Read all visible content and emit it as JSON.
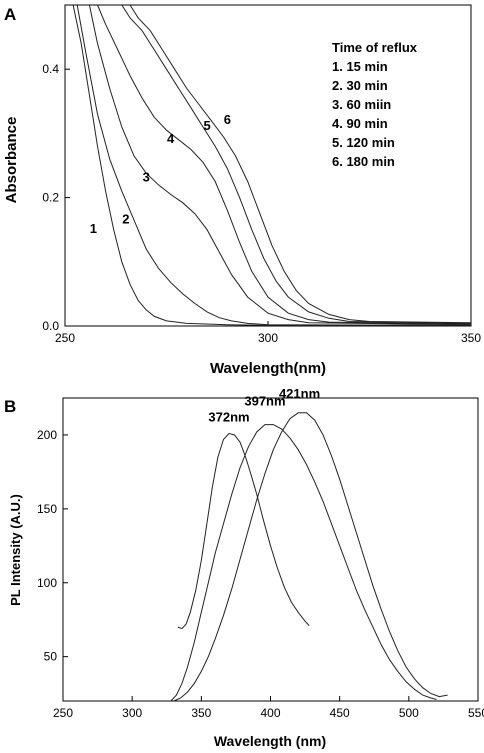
{
  "chart_data": [
    {
      "panel": "A",
      "type": "line",
      "xlabel": "Wavelength(nm)",
      "ylabel": "Absorbance",
      "xlim": [
        250,
        350
      ],
      "ylim": [
        0.0,
        0.5
      ],
      "xticks": [
        "250",
        "300",
        "350"
      ],
      "yticks": [
        "0.0",
        "0.2",
        "0.4"
      ],
      "grid": false,
      "legend": {
        "title": "Time of reflux",
        "placement": "top-right",
        "entries": [
          "1.  15 min",
          "2.  30 min",
          "3.  60 miin",
          "4.  90 min",
          "5.  120 min",
          "6.  180 min"
        ]
      },
      "series": [
        {
          "name": "1",
          "label": "1",
          "label_at": [
            257,
            0.145
          ],
          "x": [
            252,
            254,
            256,
            258,
            260,
            262,
            264,
            266,
            268,
            270,
            272,
            275,
            280,
            290,
            300,
            350
          ],
          "y": [
            0.5,
            0.44,
            0.36,
            0.28,
            0.21,
            0.15,
            0.1,
            0.065,
            0.04,
            0.025,
            0.015,
            0.008,
            0.004,
            0.002,
            0.001,
            0.001
          ]
        },
        {
          "name": "2",
          "label": "2",
          "label_at": [
            265,
            0.16
          ],
          "x": [
            253,
            255,
            258,
            261,
            264,
            267,
            270,
            273,
            276,
            279,
            282,
            285,
            288,
            291,
            295,
            300,
            350
          ],
          "y": [
            0.5,
            0.43,
            0.33,
            0.26,
            0.21,
            0.165,
            0.12,
            0.09,
            0.068,
            0.05,
            0.035,
            0.022,
            0.013,
            0.008,
            0.004,
            0.002,
            0.001
          ]
        },
        {
          "name": "3",
          "label": "3",
          "label_at": [
            270,
            0.225
          ],
          "x": [
            256,
            258,
            261,
            264,
            267,
            270,
            273,
            276,
            279,
            282,
            285,
            288,
            291,
            295,
            300,
            305,
            310,
            350
          ],
          "y": [
            0.5,
            0.44,
            0.37,
            0.31,
            0.265,
            0.238,
            0.22,
            0.205,
            0.192,
            0.175,
            0.15,
            0.115,
            0.08,
            0.045,
            0.02,
            0.01,
            0.005,
            0.002
          ]
        },
        {
          "name": "4",
          "label": "4",
          "label_at": [
            276,
            0.285
          ],
          "x": [
            258,
            260,
            263,
            266,
            269,
            272,
            275,
            278,
            281,
            284,
            287,
            290,
            293,
            296,
            300,
            305,
            310,
            315,
            350
          ],
          "y": [
            0.5,
            0.47,
            0.43,
            0.39,
            0.355,
            0.325,
            0.305,
            0.29,
            0.275,
            0.255,
            0.225,
            0.18,
            0.13,
            0.085,
            0.045,
            0.02,
            0.01,
            0.006,
            0.003
          ]
        },
        {
          "name": "5",
          "label": "5",
          "label_at": [
            285,
            0.305
          ],
          "x": [
            264,
            266,
            269,
            272,
            275,
            278,
            281,
            284,
            287,
            290,
            293,
            296,
            299,
            302,
            305,
            310,
            315,
            320,
            350
          ],
          "y": [
            0.5,
            0.48,
            0.46,
            0.43,
            0.4,
            0.37,
            0.34,
            0.31,
            0.28,
            0.245,
            0.2,
            0.15,
            0.105,
            0.07,
            0.045,
            0.022,
            0.012,
            0.007,
            0.004
          ]
        },
        {
          "name": "6",
          "label": "6",
          "label_at": [
            290,
            0.315
          ],
          "x": [
            266,
            268,
            271,
            274,
            277,
            280,
            283,
            286,
            289,
            292,
            295,
            298,
            301,
            304,
            307,
            310,
            315,
            320,
            325,
            350
          ],
          "y": [
            0.5,
            0.48,
            0.46,
            0.43,
            0.4,
            0.37,
            0.345,
            0.32,
            0.295,
            0.265,
            0.225,
            0.175,
            0.125,
            0.085,
            0.055,
            0.035,
            0.018,
            0.01,
            0.007,
            0.005
          ]
        }
      ]
    },
    {
      "panel": "B",
      "type": "line",
      "xlabel": "Wavelength (nm)",
      "ylabel": "PL Intensity (A.U.)",
      "xlim": [
        250,
        550
      ],
      "ylim": [
        20,
        225
      ],
      "xticks": [
        "250",
        "300",
        "350",
        "400",
        "450",
        "500",
        "550"
      ],
      "yticks": [
        "50",
        "100",
        "150",
        "200"
      ],
      "grid": false,
      "annotations": [
        {
          "text": "372nm",
          "x": 370,
          "y": 209
        },
        {
          "text": "397nm",
          "x": 396,
          "y": 220
        },
        {
          "text": "421nm",
          "x": 421,
          "y": 225
        }
      ],
      "series": [
        {
          "name": "372nm",
          "x": [
            333,
            336,
            339,
            342,
            346,
            350,
            354,
            358,
            362,
            366,
            370,
            374,
            378,
            382,
            386,
            390,
            395,
            400,
            405,
            410,
            415,
            420,
            425,
            428
          ],
          "y": [
            70,
            69,
            72,
            80,
            95,
            115,
            140,
            165,
            185,
            197,
            201,
            200,
            195,
            185,
            173,
            160,
            142,
            125,
            110,
            97,
            87,
            80,
            74,
            71
          ]
        },
        {
          "name": "397nm",
          "x": [
            328,
            332,
            336,
            340,
            345,
            350,
            355,
            360,
            366,
            372,
            378,
            384,
            390,
            396,
            402,
            408,
            414,
            420,
            426,
            432,
            438,
            444,
            450,
            456,
            462,
            468,
            474,
            480,
            486,
            492,
            498,
            504,
            510,
            516,
            520
          ],
          "y": [
            20,
            24,
            32,
            43,
            60,
            80,
            100,
            120,
            140,
            160,
            178,
            192,
            202,
            207,
            207,
            204,
            198,
            190,
            180,
            168,
            155,
            140,
            125,
            110,
            95,
            82,
            70,
            58,
            48,
            40,
            33,
            28,
            24,
            22,
            21
          ]
        },
        {
          "name": "421nm",
          "x": [
            330,
            335,
            340,
            345,
            350,
            355,
            360,
            366,
            372,
            378,
            384,
            390,
            396,
            402,
            408,
            414,
            420,
            426,
            432,
            438,
            444,
            450,
            456,
            462,
            468,
            474,
            480,
            486,
            492,
            498,
            504,
            510,
            516,
            522,
            528
          ],
          "y": [
            20,
            22,
            26,
            32,
            40,
            50,
            62,
            78,
            96,
            116,
            136,
            156,
            174,
            190,
            202,
            211,
            215,
            215,
            210,
            200,
            186,
            170,
            152,
            134,
            116,
            98,
            82,
            67,
            54,
            43,
            35,
            29,
            25,
            23,
            24
          ]
        }
      ]
    }
  ]
}
